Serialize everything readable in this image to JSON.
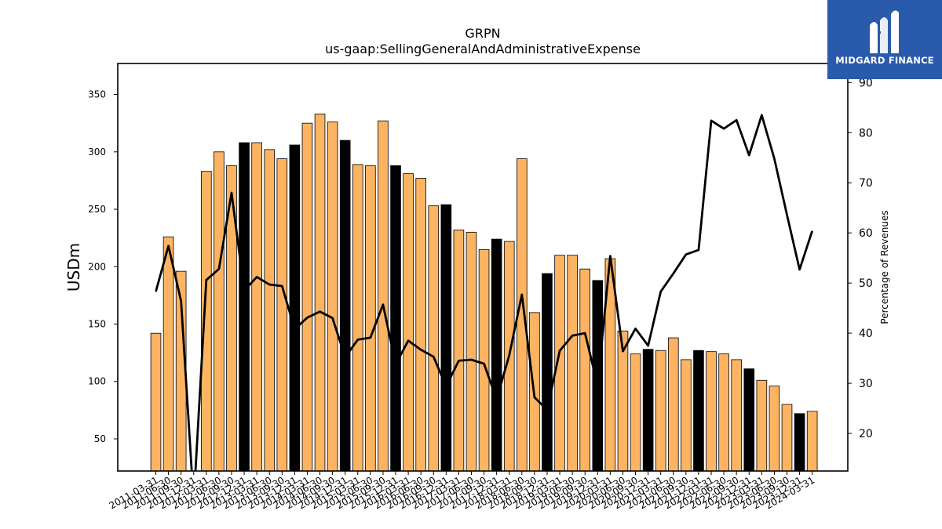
{
  "logo": {
    "text": "MIDGARD FINANCE"
  },
  "chart_data": {
    "type": "bar",
    "title": "GRPN",
    "subtitle": "us-gaap:SellingGeneralAndAdministrativeExpense",
    "ylabel": "USDm",
    "y2label": "Percentage of Revenues",
    "ylim": [
      22,
      377
    ],
    "y2lim": [
      12.5,
      93.8
    ],
    "yticks": [
      50,
      100,
      150,
      200,
      250,
      300,
      350
    ],
    "y2ticks": [
      20,
      30,
      40,
      50,
      60,
      70,
      80,
      90
    ],
    "colors": {
      "quarter": "#fdb462",
      "year_end": "#000000",
      "line": "#000000"
    },
    "categories": [
      "2011-03-31",
      "2011-06-30",
      "2011-09-30",
      "2011-12-31",
      "2012-03-31",
      "2012-06-30",
      "2012-09-30",
      "2012-12-31",
      "2013-03-31",
      "2013-06-30",
      "2013-09-30",
      "2013-12-31",
      "2014-03-31",
      "2014-06-30",
      "2014-09-30",
      "2014-12-31",
      "2015-03-31",
      "2015-06-30",
      "2015-09-30",
      "2015-12-31",
      "2016-03-31",
      "2016-06-30",
      "2016-09-30",
      "2016-12-31",
      "2017-03-31",
      "2017-06-30",
      "2017-09-30",
      "2017-12-31",
      "2018-03-31",
      "2018-06-30",
      "2018-09-30",
      "2018-12-31",
      "2019-03-31",
      "2019-06-30",
      "2019-09-30",
      "2019-12-31",
      "2020-03-31",
      "2020-06-30",
      "2020-09-30",
      "2020-12-31",
      "2021-03-31",
      "2021-06-30",
      "2021-09-30",
      "2021-12-31",
      "2022-03-31",
      "2022-06-30",
      "2022-09-30",
      "2022-12-31",
      "2023-03-31",
      "2023-06-30",
      "2023-09-30",
      "2023-12-31",
      "2024-03-31"
    ],
    "series": [
      {
        "values": [
          142,
          226,
          196,
          null,
          283,
          300,
          288,
          308,
          308,
          302,
          294,
          306,
          325,
          333,
          326,
          310,
          289,
          288,
          327,
          288,
          281,
          277,
          253,
          254,
          232,
          230,
          215,
          224,
          222,
          294,
          160,
          194,
          210,
          210,
          198,
          188,
          207,
          144,
          124,
          128,
          127,
          138,
          119,
          127,
          126,
          124,
          119,
          111,
          101,
          96,
          80,
          72,
          74
        ],
        "year_end": [
          false,
          false,
          false,
          true,
          false,
          false,
          false,
          true,
          false,
          false,
          false,
          true,
          false,
          false,
          false,
          true,
          false,
          false,
          false,
          true,
          false,
          false,
          false,
          true,
          false,
          false,
          false,
          true,
          false,
          false,
          false,
          true,
          false,
          false,
          false,
          true,
          false,
          false,
          false,
          true,
          false,
          false,
          false,
          true,
          false,
          false,
          false,
          true,
          false,
          false,
          false,
          true,
          false
        ]
      },
      {
        "values": [
          48.3,
          57.4,
          46.4,
          0,
          50.6,
          52.8,
          68.0,
          48.5,
          51.2,
          49.7,
          49.4,
          40.8,
          43.1,
          44.3,
          43.0,
          35.2,
          38.7,
          39.1,
          45.7,
          33.8,
          38.5,
          36.7,
          35.3,
          29.4,
          34.5,
          34.7,
          33.9,
          26.8,
          35.6,
          47.7,
          27.2,
          24.7,
          36.5,
          39.5,
          40.0,
          29.6,
          55.4,
          36.4,
          40.9,
          37.5,
          48.3,
          51.9,
          55.7,
          56.6,
          82.4,
          80.8,
          82.5,
          75.5,
          83.5,
          74.8,
          63.6,
          52.7,
          60.4
        ]
      }
    ],
    "xtick_labels": [
      "2011-03-31",
      "2011-06-30",
      "2011-09-30",
      "2011-12-31",
      "2012-03-31",
      "2012-06-30",
      "2012-09-30",
      "2012-12-31",
      "2013-03-31",
      "2013-06-30",
      "2013-09-30",
      "2013-12-31",
      "2014-03-31",
      "2014-06-30",
      "2014-09-30",
      "2014-12-31",
      "2015-03-31",
      "2015-06-30",
      "2015-09-30",
      "2015-12-31",
      "2016-03-31",
      "2016-06-30",
      "2016-09-30",
      "2016-12-31",
      "2017-03-31",
      "2017-06-30",
      "2017-09-30",
      "2017-12-31",
      "2018-03-31",
      "2018-06-30",
      "2018-09-30",
      "2018-12-31",
      "2019-03-31",
      "2019-06-30",
      "2019-09-30",
      "2019-12-31",
      "2020-03-31",
      "2020-06-30",
      "2020-09-30",
      "2020-12-31",
      "2021-03-31",
      "2021-06-30",
      "2021-09-30",
      "2021-12-31",
      "2022-03-31",
      "2022-06-30",
      "2022-09-30",
      "2022-12-31",
      "2023-03-31",
      "2023-06-30",
      "2023-09-30",
      "2023-12-31",
      "2024-03-31"
    ]
  }
}
